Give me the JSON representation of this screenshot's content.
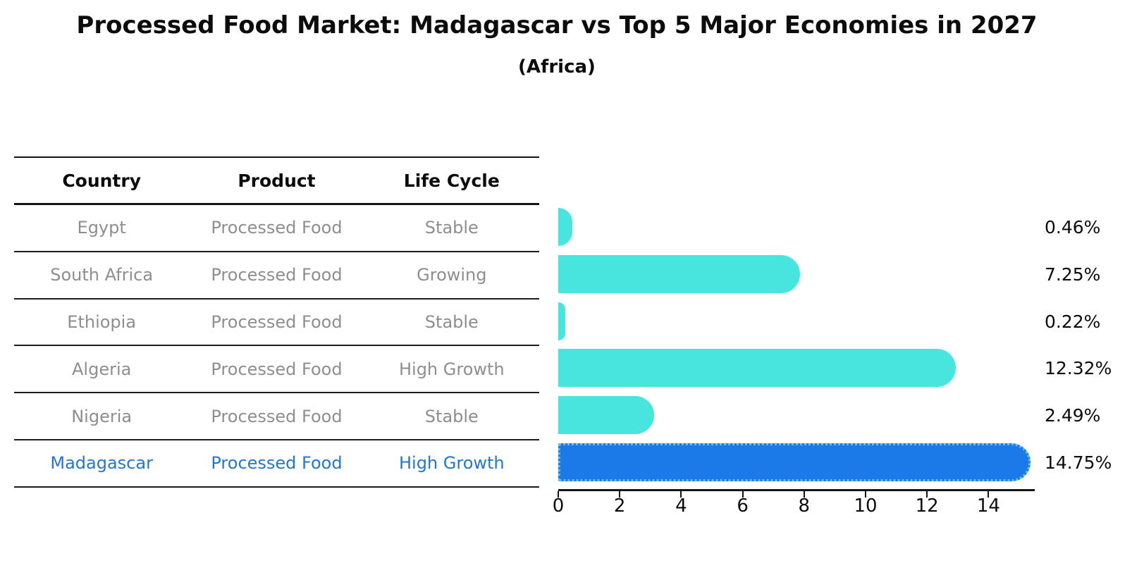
{
  "title": "Processed Food Market: Madagascar vs Top 5 Major Economies in 2027",
  "subtitle": "(Africa)",
  "table": {
    "headers": [
      "Country",
      "Product",
      "Life Cycle"
    ],
    "rows": [
      {
        "country": "Egypt",
        "product": "Processed Food",
        "life_cycle": "Stable"
      },
      {
        "country": "South Africa",
        "product": "Processed Food",
        "life_cycle": "Growing"
      },
      {
        "country": "Ethiopia",
        "product": "Processed Food",
        "life_cycle": "Stable"
      },
      {
        "country": "Algeria",
        "product": "Processed Food",
        "life_cycle": "High Growth"
      },
      {
        "country": "Nigeria",
        "product": "Processed Food",
        "life_cycle": "Stable"
      },
      {
        "country": "Madagascar",
        "product": "Processed Food",
        "life_cycle": "High Growth"
      }
    ],
    "highlight_row": "Madagascar"
  },
  "chart_data": {
    "type": "bar",
    "orientation": "horizontal",
    "title": "Processed Food Market: Madagascar vs Top 5 Major Economies in 2027",
    "subtitle": "(Africa)",
    "categories": [
      "Egypt",
      "South Africa",
      "Ethiopia",
      "Algeria",
      "Nigeria",
      "Madagascar"
    ],
    "values": [
      0.46,
      7.25,
      0.22,
      12.32,
      2.49,
      14.75
    ],
    "value_labels": [
      "0.46%",
      "7.25%",
      "0.22%",
      "12.32%",
      "2.49%",
      "14.75%"
    ],
    "x_ticks": [
      "0",
      "2",
      "4",
      "6",
      "8",
      "10",
      "12",
      "14"
    ],
    "xlim": [
      0,
      15.5
    ],
    "grid": false,
    "legend": "none",
    "highlight_index": 5
  },
  "colors": {
    "bar_cyan": "#47e5de",
    "bar_blue": "#1b79e8",
    "bar_blue_dot_edge": "#6cbaf0",
    "row_text_gray": "#8e8e8e",
    "highlight_text_blue": "#2277d4",
    "text_black": "#0c0c0c"
  }
}
